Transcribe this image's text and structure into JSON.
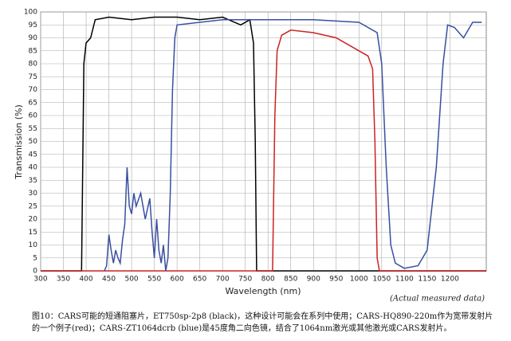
{
  "chart_data": {
    "type": "line",
    "xlabel": "Wavelength (nm)",
    "ylabel": "Transmission (%)",
    "annotation": "(Actual measured data)",
    "xlim": [
      300,
      1280
    ],
    "ylim": [
      0,
      100
    ],
    "xticks": [
      300,
      350,
      400,
      450,
      500,
      550,
      600,
      650,
      700,
      750,
      800,
      850,
      900,
      950,
      1000,
      1050,
      1100,
      1150,
      1200
    ],
    "yticks": [
      0,
      5,
      10,
      15,
      20,
      25,
      30,
      35,
      40,
      45,
      50,
      55,
      60,
      65,
      70,
      75,
      80,
      85,
      90,
      95,
      100
    ],
    "grid": true,
    "series": [
      {
        "name": "ET750sp-2p8 (black)",
        "color": "#000000",
        "x": [
          300,
          390,
          395,
          400,
          410,
          420,
          450,
          500,
          550,
          600,
          650,
          700,
          740,
          760,
          768,
          772,
          775,
          1280
        ],
        "values": [
          0,
          0,
          80,
          88,
          90,
          97,
          98,
          97,
          98,
          98,
          97,
          98,
          95,
          97,
          88,
          50,
          0,
          0
        ]
      },
      {
        "name": "CARS-HQ890-220m (red)",
        "color": "#cc2222",
        "x": [
          300,
          810,
          815,
          820,
          830,
          850,
          900,
          950,
          1000,
          1020,
          1030,
          1035,
          1040,
          1045,
          1280
        ],
        "values": [
          0,
          0,
          60,
          85,
          91,
          93,
          92,
          90,
          85,
          83,
          78,
          50,
          5,
          0,
          0
        ]
      },
      {
        "name": "CARS-ZT1064dcrb (blue)",
        "color": "#3a4fa0",
        "x": [
          440,
          445,
          450,
          455,
          460,
          465,
          470,
          475,
          480,
          485,
          490,
          495,
          500,
          505,
          510,
          520,
          530,
          540,
          545,
          550,
          555,
          560,
          565,
          570,
          575,
          580,
          585,
          590,
          595,
          600,
          650,
          700,
          800,
          900,
          1000,
          1040,
          1050,
          1060,
          1070,
          1080,
          1100,
          1130,
          1150,
          1170,
          1185,
          1195,
          1210,
          1230,
          1250,
          1270
        ],
        "values": [
          0,
          2,
          14,
          8,
          3,
          8,
          5,
          3,
          12,
          18,
          40,
          25,
          22,
          30,
          25,
          30,
          20,
          28,
          15,
          5,
          20,
          8,
          3,
          10,
          0,
          5,
          30,
          70,
          90,
          95,
          96,
          97,
          97,
          97,
          96,
          92,
          80,
          40,
          10,
          3,
          1,
          2,
          8,
          40,
          80,
          95,
          94,
          90,
          96,
          96
        ]
      }
    ],
    "caption": "图10：CARS可能的短通阻塞片，ET750sp-2p8 (black)，这种设计可能会在系列中使用；CARS-HQ890-220m作为宽带发射片的一个例子(red)；CARS-ZT1064dcrb (blue)是45度角二向色镜，结合了1064nm激光或其他激光或CARS发射片。"
  }
}
